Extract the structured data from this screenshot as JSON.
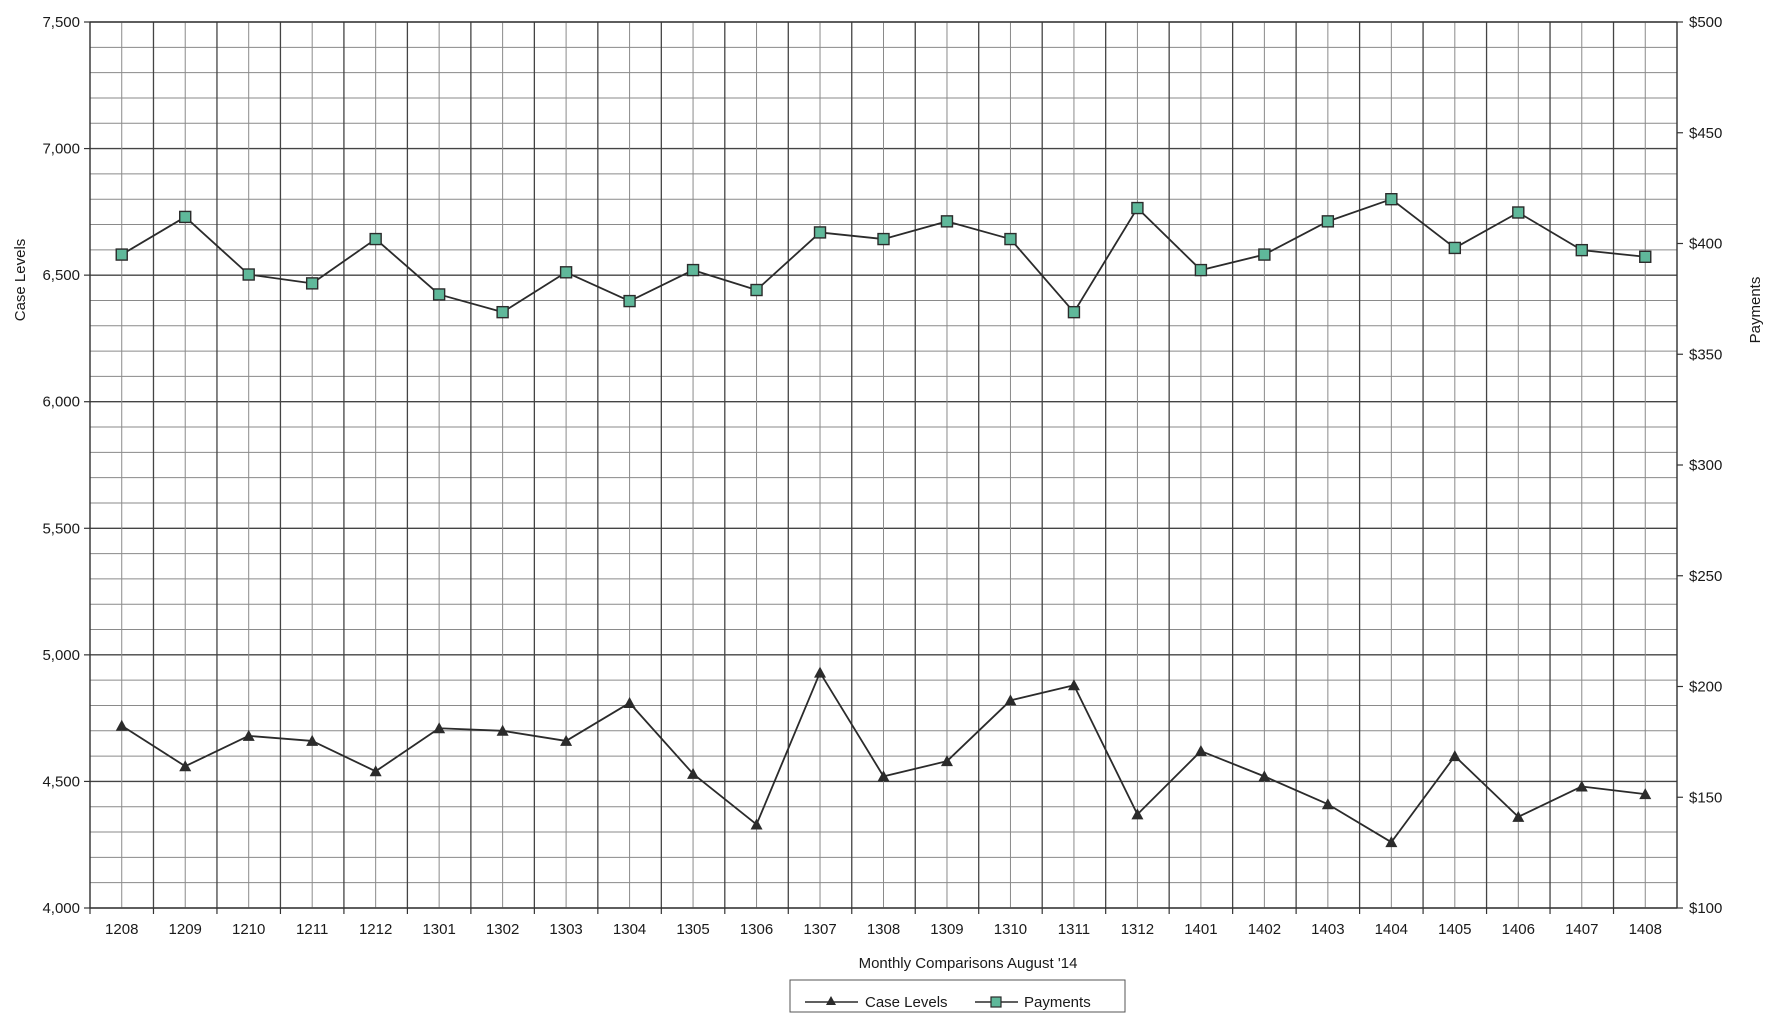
{
  "chart_data": {
    "type": "line",
    "title": "",
    "xlabel": "Monthly Comparisons  August '14",
    "ylabel_left": "Case Levels",
    "ylabel_right": "Payments",
    "categories": [
      "1208",
      "1209",
      "1210",
      "1211",
      "1212",
      "1301",
      "1302",
      "1303",
      "1304",
      "1305",
      "1306",
      "1307",
      "1308",
      "1309",
      "1310",
      "1311",
      "1312",
      "1401",
      "1402",
      "1403",
      "1404",
      "1405",
      "1406",
      "1407",
      "1408"
    ],
    "y_left": {
      "range": [
        4000,
        7500
      ],
      "ticks": [
        4000,
        4500,
        5000,
        5500,
        6000,
        6500,
        7000,
        7500
      ],
      "tick_labels": [
        "4,000",
        "4,500",
        "5,000",
        "5,500",
        "6,000",
        "6,500",
        "7,000",
        "7,500"
      ]
    },
    "y_right": {
      "range": [
        100,
        500
      ],
      "ticks": [
        100,
        150,
        200,
        250,
        300,
        350,
        400,
        450,
        500
      ],
      "tick_labels": [
        "$100",
        "$150",
        "$200",
        "$250",
        "$300",
        "$350",
        "$400",
        "$450",
        "$500"
      ]
    },
    "grid": true,
    "legend": "bottom-center",
    "series": [
      {
        "name": "Case Levels",
        "axis": "left",
        "marker": "triangle",
        "color": "#2b2b2b",
        "values": [
          4720,
          4560,
          4680,
          4660,
          4540,
          4710,
          4700,
          4660,
          4810,
          4530,
          4330,
          4930,
          4520,
          4580,
          4820,
          4880,
          4370,
          4620,
          4520,
          4410,
          4260,
          4600,
          4360,
          4480,
          4450
        ]
      },
      {
        "name": "Payments",
        "axis": "right",
        "marker": "square",
        "color": "#2b2b2b",
        "marker_fill": "#5fb89a",
        "values": [
          395,
          412,
          386,
          382,
          402,
          377,
          369,
          387,
          374,
          388,
          379,
          405,
          402,
          410,
          402,
          369,
          416,
          388,
          395,
          410,
          420,
          398,
          414,
          397,
          394
        ]
      }
    ]
  }
}
